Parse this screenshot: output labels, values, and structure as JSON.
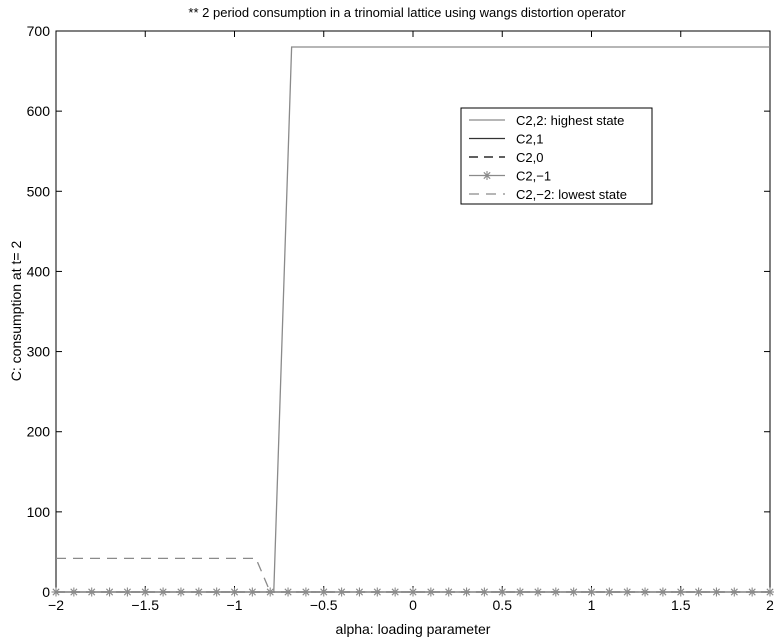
{
  "chart_data": {
    "type": "line",
    "title": "** 2 period consumption in a trinomial lattice using wangs distortion operator",
    "xlabel": "alpha: loading parameter",
    "ylabel": "C: consumption at t= 2",
    "xlim": [
      -2,
      2
    ],
    "ylim": [
      0,
      700
    ],
    "xticks": [
      -2,
      -1.5,
      -1,
      -0.5,
      0,
      0.5,
      1,
      1.5,
      2
    ],
    "xtick_labels": [
      "−2",
      "−1.5",
      "−1",
      "−0.5",
      "0",
      "0.5",
      "1",
      "1.5",
      "2"
    ],
    "yticks": [
      0,
      100,
      200,
      300,
      400,
      500,
      600,
      700
    ],
    "ytick_labels": [
      "0",
      "100",
      "200",
      "300",
      "400",
      "500",
      "600",
      "700"
    ],
    "grid": false,
    "legend_position": "top-right",
    "series": [
      {
        "name": "C2,2: highest state",
        "style": "solid-light",
        "color": "#8a8a8a",
        "x": [
          -2,
          -0.8,
          -0.78,
          -0.68,
          2
        ],
        "y": [
          0,
          0,
          0,
          680,
          680
        ]
      },
      {
        "name": "C2,1",
        "style": "solid",
        "color": "#333333",
        "x": [
          -2,
          2
        ],
        "y": [
          0,
          0
        ]
      },
      {
        "name": "C2,0",
        "style": "dashed",
        "color": "#000000",
        "x": [
          -2,
          2
        ],
        "y": [
          0,
          0
        ]
      },
      {
        "name": "C2,−1",
        "style": "solid-star",
        "color": "#8a8a8a",
        "x": [
          -2,
          -1.9,
          -1.8,
          -1.7,
          -1.6,
          -1.5,
          -1.4,
          -1.3,
          -1.2,
          -1.1,
          -1.0,
          -0.9,
          -0.8,
          -0.7,
          -0.6,
          -0.5,
          -0.4,
          -0.3,
          -0.2,
          -0.1,
          0,
          0.1,
          0.2,
          0.3,
          0.4,
          0.5,
          0.6,
          0.7,
          0.8,
          0.9,
          1.0,
          1.1,
          1.2,
          1.3,
          1.4,
          1.5,
          1.6,
          1.7,
          1.8,
          1.9,
          2.0
        ],
        "y": [
          0,
          0,
          0,
          0,
          0,
          0,
          0,
          0,
          0,
          0,
          0,
          0,
          0,
          0,
          0,
          0,
          0,
          0,
          0,
          0,
          0,
          0,
          0,
          0,
          0,
          0,
          0,
          0,
          0,
          0,
          0,
          0,
          0,
          0,
          0,
          0,
          0,
          0,
          0,
          0,
          0
        ]
      },
      {
        "name": "C2,−2: lowest state",
        "style": "dashed-light",
        "color": "#8a8a8a",
        "x": [
          -2,
          -0.88,
          -0.8,
          2
        ],
        "y": [
          42,
          42,
          0,
          0
        ]
      }
    ]
  }
}
